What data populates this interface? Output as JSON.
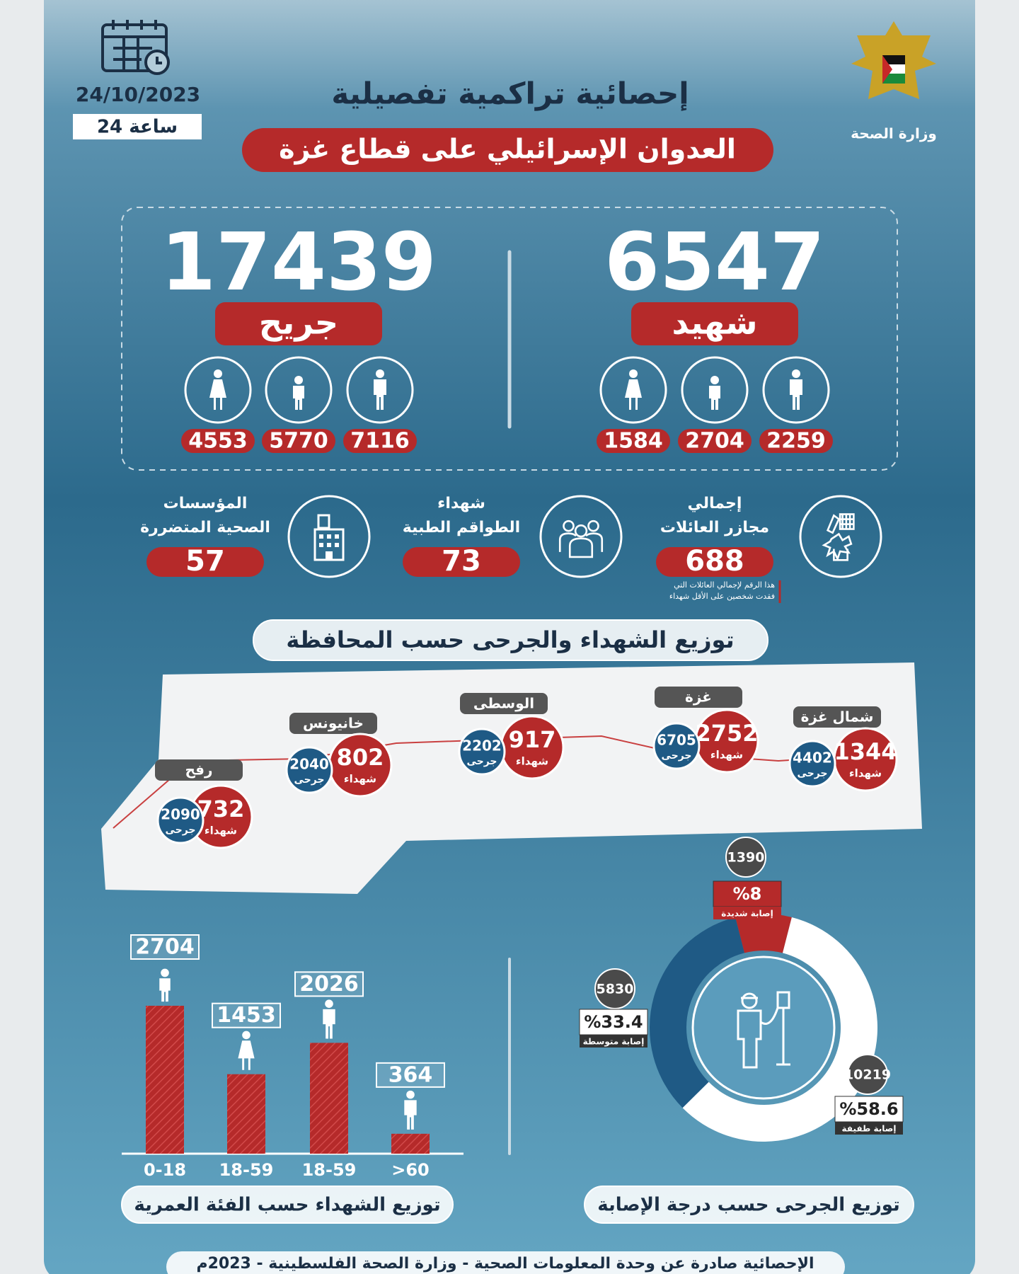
{
  "header": {
    "ministry": "وزارة الصحة",
    "date": "24/10/2023",
    "period": "24 ساعة",
    "title": "إحصائية تراكمية تفصيلية",
    "subtitle": "العدوان الإسرائيلي على قطاع غزة"
  },
  "injured": {
    "total": 17439,
    "label": "جريح",
    "breakdown": [
      7116,
      5770,
      4553
    ]
  },
  "killed": {
    "total": 6547,
    "label": "شهيد",
    "breakdown": [
      2259,
      2704,
      1584
    ]
  },
  "stats": [
    {
      "lines": [
        "إجمالي",
        "مجازر العائلات"
      ],
      "value": 688,
      "note": [
        "هذا الرقم لإجمالي العائلات التي",
        "فقدت شخصين على الأقل شهداء"
      ]
    },
    {
      "lines": [
        "شهداء",
        "الطواقم الطبية"
      ],
      "value": 73
    },
    {
      "lines": [
        "المؤسسات",
        "الصحية المتضررة"
      ],
      "value": 57
    }
  ],
  "map": {
    "title": "توزيع الشهداء والجرحى حسب المحافظة",
    "killed_label": "شهداء",
    "injured_label": "جرحى",
    "governorates": [
      {
        "name": "شمال غزة",
        "killed": 1344,
        "injured": 4402
      },
      {
        "name": "غزة",
        "killed": 2752,
        "injured": 6705
      },
      {
        "name": "الوسطى",
        "killed": 917,
        "injured": 2202
      },
      {
        "name": "خانيونس",
        "killed": 802,
        "injured": 2040
      },
      {
        "name": "رفح",
        "killed": 732,
        "injured": 2090
      }
    ]
  },
  "chart_data": [
    {
      "type": "bar",
      "title": "توزيع الشهداء حسب الفئة العمرية",
      "categories": [
        "0-18",
        "18-59",
        "18-59",
        ">60"
      ],
      "values": [
        2704,
        1453,
        2026,
        364
      ],
      "color": "#b52a2a"
    },
    {
      "type": "pie",
      "title": "توزيع الجرحى حسب درجة الإصابة",
      "categories": [
        "إصابة شديدة",
        "إصابة متوسطة",
        "إصابة طفيفة"
      ],
      "values": [
        1390,
        5830,
        10219
      ],
      "percents": [
        8,
        33.4,
        58.6
      ],
      "percent_labels": [
        "%8",
        "%33.4",
        "%58.6"
      ],
      "colors": [
        "#b52a2a",
        "#1f5a85",
        "#ffffff"
      ]
    }
  ],
  "footer": "الإحصائية صادرة عن وحدة المعلومات الصحية - وزارة الصحة الفلسطينية - 2023م"
}
